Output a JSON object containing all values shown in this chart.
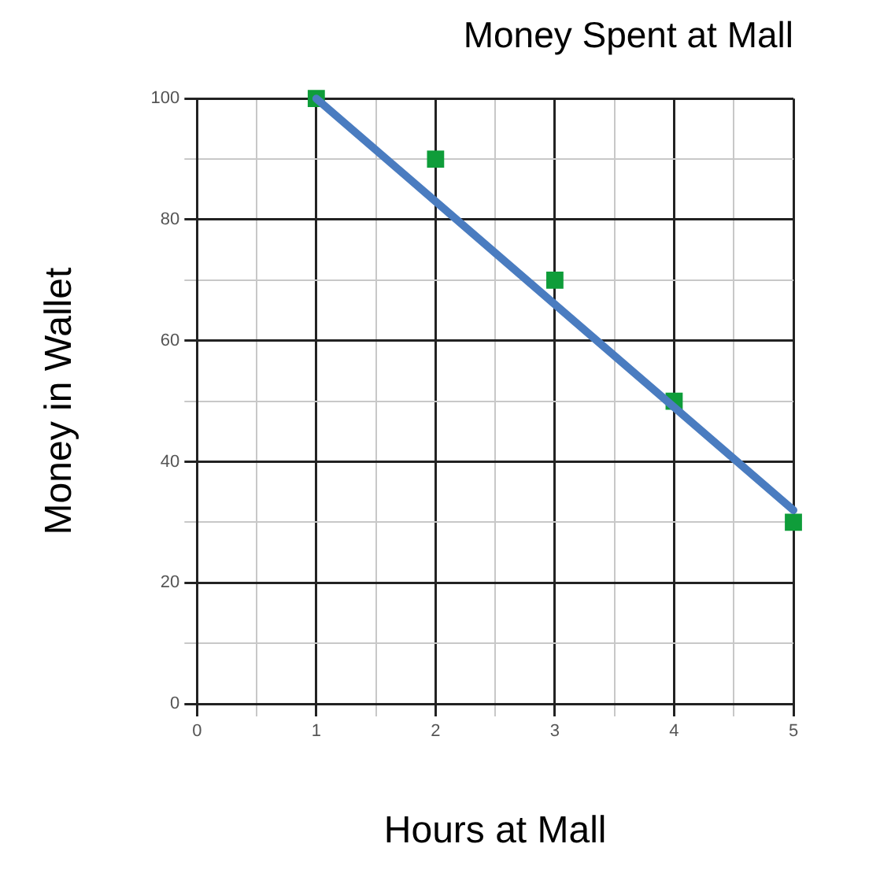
{
  "chart_data": {
    "type": "scatter",
    "title": "Money Spent at Mall",
    "xlabel": "Hours at Mall",
    "ylabel": "Money in Wallet",
    "series": [
      {
        "type": "scatter",
        "color": "#0f9d3a",
        "x": [
          1,
          2,
          3,
          4,
          5
        ],
        "values": [
          100,
          90,
          70,
          50,
          30
        ]
      },
      {
        "type": "line",
        "color": "#4a7cc0",
        "marker": "none",
        "x": [
          1,
          5
        ],
        "values": [
          100,
          32
        ]
      }
    ],
    "xlim": [
      0,
      5
    ],
    "ylim": [
      0,
      100
    ],
    "xticks": [
      0,
      {
        "value": 0.5,
        "label": null
      },
      1,
      {
        "value": 1.5,
        "label": null
      },
      2,
      {
        "value": 2.5,
        "label": null
      },
      3,
      {
        "value": 3.5,
        "label": null
      },
      4,
      {
        "value": 4.5,
        "label": null
      },
      5
    ],
    "yticks": [
      0,
      {
        "value": 10,
        "label": null
      },
      20,
      {
        "value": 30,
        "label": null
      },
      40,
      {
        "value": 50,
        "label": null
      },
      60,
      {
        "value": 70,
        "label": null
      },
      80,
      {
        "value": 90,
        "label": null
      },
      100
    ],
    "grid": true,
    "legend": false,
    "marker": "square"
  }
}
